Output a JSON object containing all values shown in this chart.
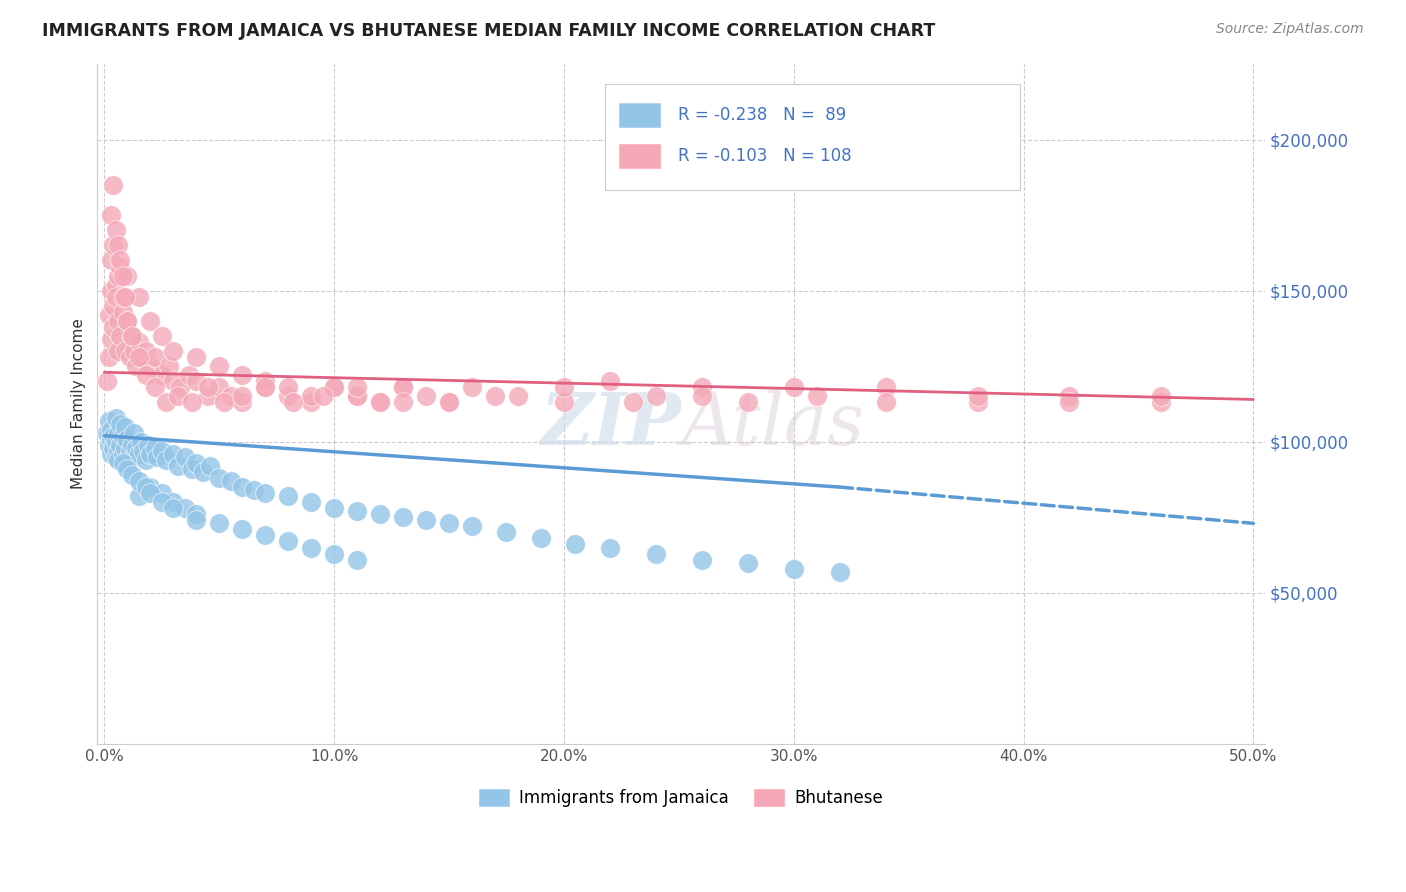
{
  "title": "IMMIGRANTS FROM JAMAICA VS BHUTANESE MEDIAN FAMILY INCOME CORRELATION CHART",
  "source": "Source: ZipAtlas.com",
  "ylabel": "Median Family Income",
  "legend_label1": "Immigrants from Jamaica",
  "legend_label2": "Bhutanese",
  "R1": -0.238,
  "N1": 89,
  "R2": -0.103,
  "N2": 108,
  "color_blue": "#93C5E8",
  "color_pink": "#F4A8B8",
  "color_blue_dark": "#5B9BD5",
  "color_pink_dark": "#E06080",
  "yticks": [
    50000,
    100000,
    150000,
    200000
  ],
  "ytick_labels": [
    "$50,000",
    "$100,000",
    "$150,000",
    "$200,000"
  ],
  "ymin": 0,
  "ymax": 225000,
  "xmin": -0.003,
  "xmax": 0.505,
  "watermark": "ZIPAtlas",
  "trend_blue": [
    0.0,
    102000,
    0.32,
    85000
  ],
  "trend_dash": [
    0.32,
    85000,
    0.5,
    73000
  ],
  "trend_pink": [
    0.0,
    123000,
    0.5,
    114000
  ],
  "blue_x": [
    0.001,
    0.002,
    0.002,
    0.003,
    0.003,
    0.003,
    0.004,
    0.004,
    0.005,
    0.005,
    0.005,
    0.006,
    0.006,
    0.006,
    0.007,
    0.007,
    0.008,
    0.008,
    0.009,
    0.009,
    0.01,
    0.01,
    0.011,
    0.012,
    0.013,
    0.013,
    0.014,
    0.015,
    0.016,
    0.017,
    0.018,
    0.019,
    0.02,
    0.022,
    0.023,
    0.025,
    0.027,
    0.03,
    0.032,
    0.035,
    0.038,
    0.04,
    0.043,
    0.046,
    0.05,
    0.055,
    0.06,
    0.065,
    0.07,
    0.08,
    0.09,
    0.1,
    0.11,
    0.12,
    0.13,
    0.14,
    0.15,
    0.16,
    0.175,
    0.19,
    0.205,
    0.22,
    0.24,
    0.26,
    0.28,
    0.3,
    0.32,
    0.015,
    0.02,
    0.025,
    0.03,
    0.035,
    0.04,
    0.05,
    0.06,
    0.07,
    0.08,
    0.09,
    0.1,
    0.11,
    0.008,
    0.01,
    0.012,
    0.015,
    0.018,
    0.02,
    0.025,
    0.03,
    0.04
  ],
  "blue_y": [
    103000,
    99000,
    107000,
    101000,
    96000,
    104000,
    98000,
    102000,
    100000,
    95000,
    108000,
    97000,
    103000,
    94000,
    99000,
    106000,
    96000,
    102000,
    98000,
    105000,
    94000,
    101000,
    97000,
    99000,
    95000,
    103000,
    98000,
    96000,
    100000,
    97000,
    94000,
    99000,
    96000,
    98000,
    95000,
    97000,
    94000,
    96000,
    92000,
    95000,
    91000,
    93000,
    90000,
    92000,
    88000,
    87000,
    85000,
    84000,
    83000,
    82000,
    80000,
    78000,
    77000,
    76000,
    75000,
    74000,
    73000,
    72000,
    70000,
    68000,
    66000,
    65000,
    63000,
    61000,
    60000,
    58000,
    57000,
    82000,
    85000,
    83000,
    80000,
    78000,
    76000,
    73000,
    71000,
    69000,
    67000,
    65000,
    63000,
    61000,
    93000,
    91000,
    89000,
    87000,
    85000,
    83000,
    80000,
    78000,
    74000
  ],
  "pink_x": [
    0.001,
    0.002,
    0.002,
    0.003,
    0.003,
    0.003,
    0.004,
    0.004,
    0.004,
    0.005,
    0.005,
    0.006,
    0.006,
    0.006,
    0.007,
    0.007,
    0.008,
    0.008,
    0.009,
    0.01,
    0.011,
    0.012,
    0.013,
    0.014,
    0.015,
    0.016,
    0.018,
    0.02,
    0.022,
    0.025,
    0.028,
    0.03,
    0.033,
    0.037,
    0.04,
    0.045,
    0.05,
    0.055,
    0.06,
    0.07,
    0.08,
    0.09,
    0.1,
    0.11,
    0.12,
    0.13,
    0.14,
    0.15,
    0.16,
    0.18,
    0.2,
    0.22,
    0.24,
    0.26,
    0.28,
    0.31,
    0.34,
    0.38,
    0.42,
    0.46,
    0.01,
    0.015,
    0.02,
    0.025,
    0.03,
    0.04,
    0.05,
    0.06,
    0.07,
    0.08,
    0.09,
    0.1,
    0.11,
    0.12,
    0.13,
    0.15,
    0.17,
    0.2,
    0.23,
    0.26,
    0.3,
    0.34,
    0.38,
    0.42,
    0.46,
    0.003,
    0.004,
    0.005,
    0.006,
    0.007,
    0.008,
    0.009,
    0.01,
    0.012,
    0.015,
    0.018,
    0.022,
    0.027,
    0.032,
    0.038,
    0.045,
    0.052,
    0.06,
    0.07,
    0.082,
    0.095,
    0.11,
    0.13
  ],
  "pink_y": [
    120000,
    128000,
    142000,
    134000,
    150000,
    160000,
    145000,
    138000,
    165000,
    152000,
    148000,
    140000,
    155000,
    130000,
    158000,
    135000,
    143000,
    148000,
    130000,
    140000,
    128000,
    135000,
    130000,
    125000,
    133000,
    128000,
    130000,
    125000,
    128000,
    122000,
    125000,
    120000,
    118000,
    122000,
    120000,
    115000,
    118000,
    115000,
    113000,
    118000,
    115000,
    113000,
    118000,
    115000,
    113000,
    118000,
    115000,
    113000,
    118000,
    115000,
    113000,
    120000,
    115000,
    118000,
    113000,
    115000,
    118000,
    113000,
    115000,
    113000,
    155000,
    148000,
    140000,
    135000,
    130000,
    128000,
    125000,
    122000,
    120000,
    118000,
    115000,
    118000,
    115000,
    113000,
    118000,
    113000,
    115000,
    118000,
    113000,
    115000,
    118000,
    113000,
    115000,
    113000,
    115000,
    175000,
    185000,
    170000,
    165000,
    160000,
    155000,
    148000,
    140000,
    135000,
    128000,
    122000,
    118000,
    113000,
    115000,
    113000,
    118000,
    113000,
    115000,
    118000,
    113000,
    115000,
    118000,
    113000
  ]
}
